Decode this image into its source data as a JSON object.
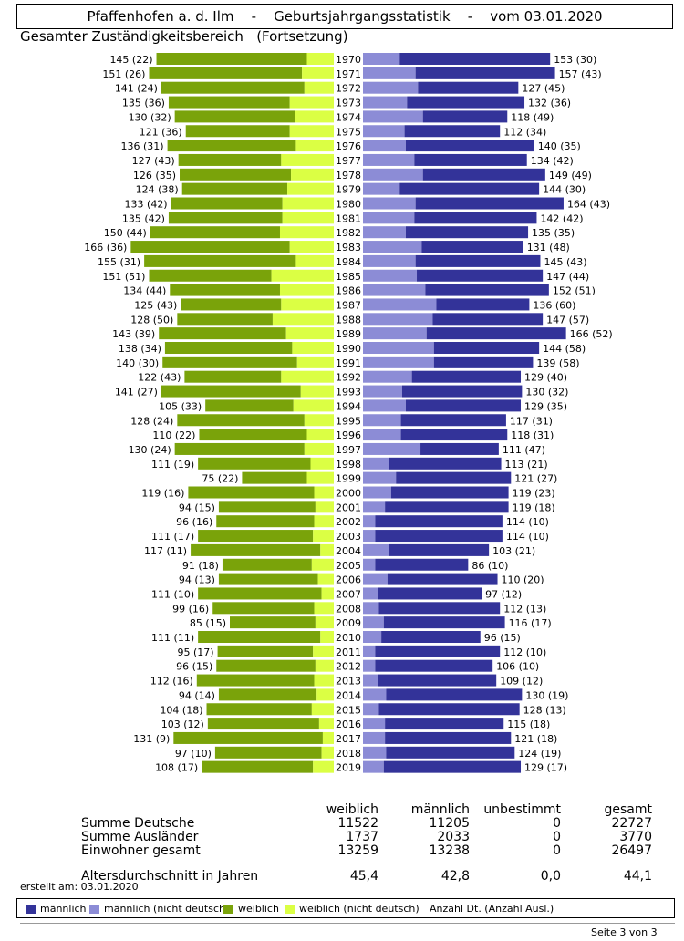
{
  "header": {
    "place": "Pfaffenhofen a. d. Ilm",
    "sep1": "-",
    "report": "Geburtsjahrgangsstatistik",
    "sep2": "-",
    "date": "vom 03.01.2020"
  },
  "subtitle": "Gesamter Zuständigkeitsbereich   (Fortsetzung)",
  "colors": {
    "male_de": "#333399",
    "male_foreign": "#8c8cd6",
    "female_de": "#7aa30a",
    "female_foreign": "#dbff44"
  },
  "chart_data": {
    "type": "bar",
    "title": "Geburtsjahrgangsstatistik",
    "categories": [
      "1970",
      "1971",
      "1972",
      "1973",
      "1974",
      "1975",
      "1976",
      "1977",
      "1978",
      "1979",
      "1980",
      "1981",
      "1982",
      "1983",
      "1984",
      "1985",
      "1986",
      "1987",
      "1988",
      "1989",
      "1990",
      "1991",
      "1992",
      "1993",
      "1994",
      "1995",
      "1996",
      "1997",
      "1998",
      "1999",
      "2000",
      "2001",
      "2002",
      "2003",
      "2004",
      "2005",
      "2006",
      "2007",
      "2008",
      "2009",
      "2010",
      "2011",
      "2012",
      "2013",
      "2014",
      "2015",
      "2016",
      "2017",
      "2018",
      "2019"
    ],
    "female_total": [
      145,
      151,
      141,
      135,
      130,
      121,
      136,
      127,
      126,
      124,
      133,
      135,
      150,
      166,
      155,
      151,
      134,
      125,
      128,
      143,
      138,
      140,
      122,
      141,
      105,
      128,
      110,
      130,
      111,
      75,
      119,
      94,
      96,
      111,
      117,
      91,
      94,
      111,
      99,
      85,
      111,
      95,
      96,
      112,
      94,
      104,
      103,
      131,
      97,
      108
    ],
    "female_foreign": [
      22,
      26,
      24,
      36,
      32,
      36,
      31,
      43,
      35,
      38,
      42,
      42,
      44,
      36,
      31,
      51,
      44,
      43,
      50,
      39,
      34,
      30,
      43,
      27,
      33,
      24,
      22,
      24,
      19,
      22,
      16,
      15,
      16,
      17,
      11,
      18,
      13,
      10,
      16,
      15,
      11,
      17,
      15,
      16,
      14,
      18,
      12,
      9,
      10,
      17
    ],
    "male_total": [
      153,
      157,
      127,
      132,
      118,
      112,
      140,
      134,
      149,
      144,
      164,
      142,
      135,
      131,
      145,
      147,
      152,
      136,
      147,
      166,
      144,
      139,
      129,
      130,
      129,
      117,
      118,
      111,
      113,
      121,
      119,
      119,
      114,
      114,
      103,
      86,
      110,
      97,
      112,
      116,
      96,
      112,
      106,
      109,
      130,
      128,
      115,
      121,
      124,
      129
    ],
    "male_foreign": [
      30,
      43,
      45,
      36,
      49,
      34,
      35,
      42,
      49,
      30,
      43,
      42,
      35,
      48,
      43,
      44,
      51,
      60,
      57,
      52,
      58,
      58,
      40,
      32,
      35,
      31,
      31,
      47,
      21,
      27,
      23,
      18,
      10,
      10,
      21,
      10,
      20,
      12,
      13,
      17,
      15,
      10,
      10,
      12,
      19,
      13,
      18,
      18,
      19,
      17
    ],
    "series": [
      {
        "name": "männlich"
      },
      {
        "name": "männlich (nicht deutsch)"
      },
      {
        "name": "weiblich"
      },
      {
        "name": "weiblich (nicht deutsch)"
      }
    ],
    "xlim": [
      0,
      170
    ],
    "label_format": "Anzahl Dt. (Anzahl Ausl.)"
  },
  "summary": {
    "headers": [
      "weiblich",
      "männlich",
      "unbestimmt",
      "gesamt"
    ],
    "rows": [
      {
        "label": "Summe Deutsche",
        "values": [
          "11522",
          "11205",
          "0",
          "22727"
        ]
      },
      {
        "label": "Summe Ausländer",
        "values": [
          "1737",
          "2033",
          "0",
          "3770"
        ]
      },
      {
        "label": "Einwohner gesamt",
        "values": [
          "13259",
          "13238",
          "0",
          "26497"
        ]
      }
    ],
    "age": {
      "label": "Altersdurchschnitt in Jahren",
      "values": [
        "45,4",
        "42,8",
        "0,0",
        "44,1"
      ]
    }
  },
  "created": "erstellt am: 03.01.2020",
  "legend": {
    "items": [
      "männlich",
      "männlich (nicht deutsch)",
      "weiblich",
      "weiblich (nicht deutsch)"
    ],
    "note": "Anzahl Dt. (Anzahl Ausl.)"
  },
  "page": "Seite 3 von  3"
}
